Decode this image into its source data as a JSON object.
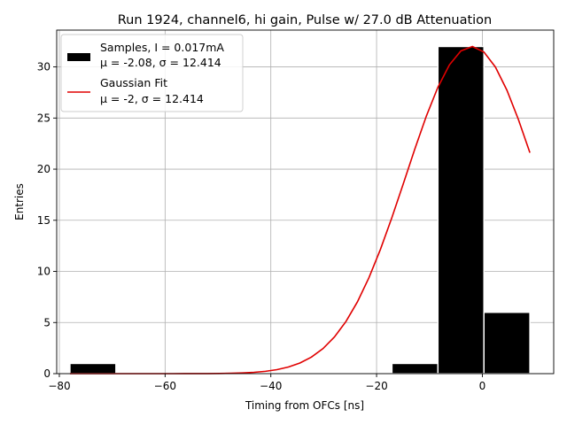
{
  "chart_data": {
    "type": "bar",
    "title": "Run 1924, channel6, hi gain, Pulse w/ 27.0 dB Attenuation",
    "xlabel": "Timing from OFCs [ns]",
    "ylabel": "Entries",
    "xlim": [
      -80.5,
      13.5
    ],
    "ylim": [
      0,
      33.6
    ],
    "xticks": [
      -80,
      -60,
      -40,
      -20,
      0
    ],
    "yticks": [
      0,
      5,
      10,
      15,
      20,
      25,
      30
    ],
    "grid": true,
    "legend_position": "top-left",
    "histogram": {
      "name": "Samples, I = 0.017mA",
      "stats": "μ = -2.08, σ = 12.414",
      "color": "#000000",
      "edge_color": "#ffffff",
      "bins": [
        {
          "x0": -78,
          "x1": -69.3,
          "count": 1
        },
        {
          "x0": -17.1,
          "x1": -8.4,
          "count": 1
        },
        {
          "x0": -8.4,
          "x1": 0.3,
          "count": 32
        },
        {
          "x0": 0.3,
          "x1": 9.0,
          "count": 6
        }
      ]
    },
    "fit": {
      "name": "Gaussian Fit",
      "stats": "μ = -2, σ = 12.414",
      "color": "#e00000",
      "mu": -2,
      "sigma": 12.414,
      "amplitude": 32,
      "x_range": [
        -78,
        9
      ],
      "points": 41
    }
  }
}
